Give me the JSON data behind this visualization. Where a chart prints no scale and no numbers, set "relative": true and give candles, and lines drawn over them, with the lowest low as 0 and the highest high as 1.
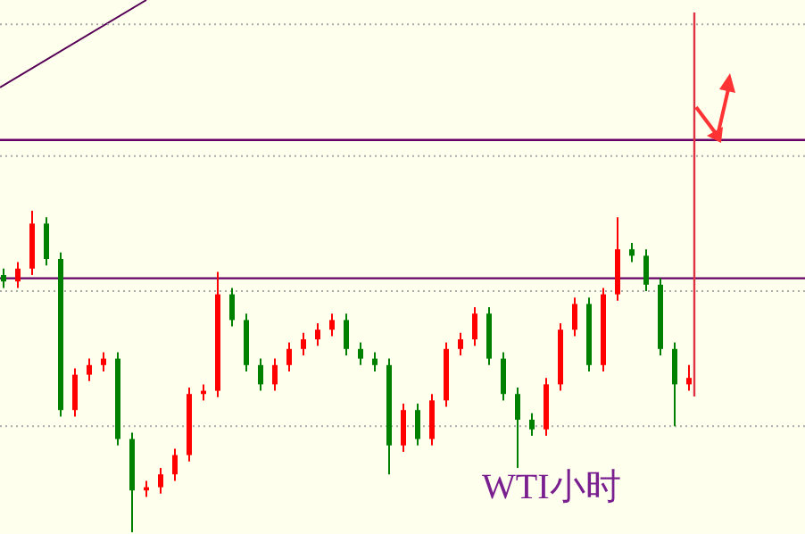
{
  "chart_data": {
    "type": "candlestick",
    "relative": true,
    "categories": [
      null,
      null,
      null,
      null,
      null,
      null,
      null,
      null,
      null,
      null,
      null,
      null,
      null,
      null,
      null,
      null,
      null,
      null,
      null,
      null,
      null,
      null,
      null,
      null,
      null,
      null,
      null,
      null,
      null,
      null,
      null,
      null,
      null,
      null,
      null,
      null,
      null,
      null,
      null,
      null,
      null,
      null,
      null,
      null,
      null,
      null,
      null,
      null,
      null
    ],
    "ohlc": [
      [
        0.8,
        0.82,
        0.76,
        0.78
      ],
      [
        0.78,
        0.84,
        0.76,
        0.82
      ],
      [
        0.82,
        1,
        0.8,
        0.96
      ],
      [
        0.96,
        0.98,
        0.83,
        0.85
      ],
      [
        0.85,
        0.87,
        0.36,
        0.38
      ],
      [
        0.38,
        0.51,
        0.36,
        0.49
      ],
      [
        0.49,
        0.54,
        0.47,
        0.52
      ],
      [
        0.52,
        0.56,
        0.5,
        0.54
      ],
      [
        0.54,
        0.56,
        0.27,
        0.29
      ],
      [
        0.29,
        0.31,
        0,
        0.13
      ],
      [
        0.13,
        0.16,
        0.11,
        0.14
      ],
      [
        0.14,
        0.2,
        0.12,
        0.18
      ],
      [
        0.18,
        0.26,
        0.16,
        0.24
      ],
      [
        0.24,
        0.45,
        0.22,
        0.43
      ],
      [
        0.43,
        0.46,
        0.41,
        0.44
      ],
      [
        0.44,
        0.81,
        0.42,
        0.74
      ],
      [
        0.74,
        0.76,
        0.64,
        0.66
      ],
      [
        0.66,
        0.68,
        0.5,
        0.52
      ],
      [
        0.52,
        0.54,
        0.44,
        0.46
      ],
      [
        0.46,
        0.54,
        0.44,
        0.52
      ],
      [
        0.52,
        0.59,
        0.5,
        0.57
      ],
      [
        0.57,
        0.62,
        0.55,
        0.6
      ],
      [
        0.6,
        0.65,
        0.58,
        0.63
      ],
      [
        0.63,
        0.68,
        0.61,
        0.66
      ],
      [
        0.66,
        0.68,
        0.55,
        0.57
      ],
      [
        0.57,
        0.59,
        0.52,
        0.54
      ],
      [
        0.54,
        0.56,
        0.5,
        0.52
      ],
      [
        0.52,
        0.54,
        0.18,
        0.27
      ],
      [
        0.27,
        0.4,
        0.25,
        0.38
      ],
      [
        0.38,
        0.4,
        0.27,
        0.29
      ],
      [
        0.29,
        0.43,
        0.27,
        0.41
      ],
      [
        0.41,
        0.59,
        0.39,
        0.57
      ],
      [
        0.57,
        0.62,
        0.55,
        0.6
      ],
      [
        0.6,
        0.7,
        0.58,
        0.68
      ],
      [
        0.68,
        0.7,
        0.52,
        0.54
      ],
      [
        0.54,
        0.56,
        0.41,
        0.43
      ],
      [
        0.43,
        0.45,
        0.2,
        0.35
      ],
      [
        0.35,
        0.37,
        0.3,
        0.32
      ],
      [
        0.32,
        0.48,
        0.3,
        0.46
      ],
      [
        0.46,
        0.65,
        0.44,
        0.63
      ],
      [
        0.63,
        0.73,
        0.61,
        0.71
      ],
      [
        0.71,
        0.73,
        0.5,
        0.52
      ],
      [
        0.52,
        0.76,
        0.5,
        0.74
      ],
      [
        0.74,
        0.98,
        0.72,
        0.88
      ],
      [
        0.88,
        0.9,
        0.84,
        0.86
      ],
      [
        0.86,
        0.88,
        0.75,
        0.77
      ],
      [
        0.77,
        0.79,
        0.55,
        0.57
      ],
      [
        0.57,
        0.59,
        0.33,
        0.46
      ],
      [
        0.46,
        0.52,
        0.44,
        0.48
      ]
    ],
    "colors": [
      "#008000",
      "#ff0000",
      "#ff0000",
      "#008000",
      "#008000",
      "#ff0000",
      "#ff0000",
      "#ff0000",
      "#008000",
      "#008000",
      "#ff0000",
      "#ff0000",
      "#ff0000",
      "#ff0000",
      "#ff0000",
      "#ff0000",
      "#008000",
      "#008000",
      "#008000",
      "#ff0000",
      "#ff0000",
      "#ff0000",
      "#ff0000",
      "#ff0000",
      "#008000",
      "#008000",
      "#008000",
      "#008000",
      "#ff0000",
      "#008000",
      "#ff0000",
      "#ff0000",
      "#ff0000",
      "#ff0000",
      "#008000",
      "#008000",
      "#008000",
      "#008000",
      "#ff0000",
      "#ff0000",
      "#ff0000",
      "#008000",
      "#ff0000",
      "#ff0000",
      "#008000",
      "#008000",
      "#008000",
      "#008000",
      "#ff0000"
    ],
    "ref_lines": [
      {
        "axis": "y",
        "value": 1.58,
        "color": "#aaaaaa",
        "line_style": "dotted"
      },
      {
        "axis": "y",
        "value": 1.17,
        "color": "#aaaaaa",
        "line_style": "dotted"
      },
      {
        "axis": "y",
        "value": 0.75,
        "color": "#aaaaaa",
        "line_style": "dotted"
      },
      {
        "axis": "y",
        "value": 0.33,
        "color": "#aaaaaa",
        "line_style": "dotted"
      },
      {
        "axis": "y",
        "value": 1.22,
        "color": "#660066"
      },
      {
        "axis": "y",
        "value": 0.79,
        "color": "#660066"
      }
    ],
    "annotations": [
      "WTI小时"
    ]
  }
}
